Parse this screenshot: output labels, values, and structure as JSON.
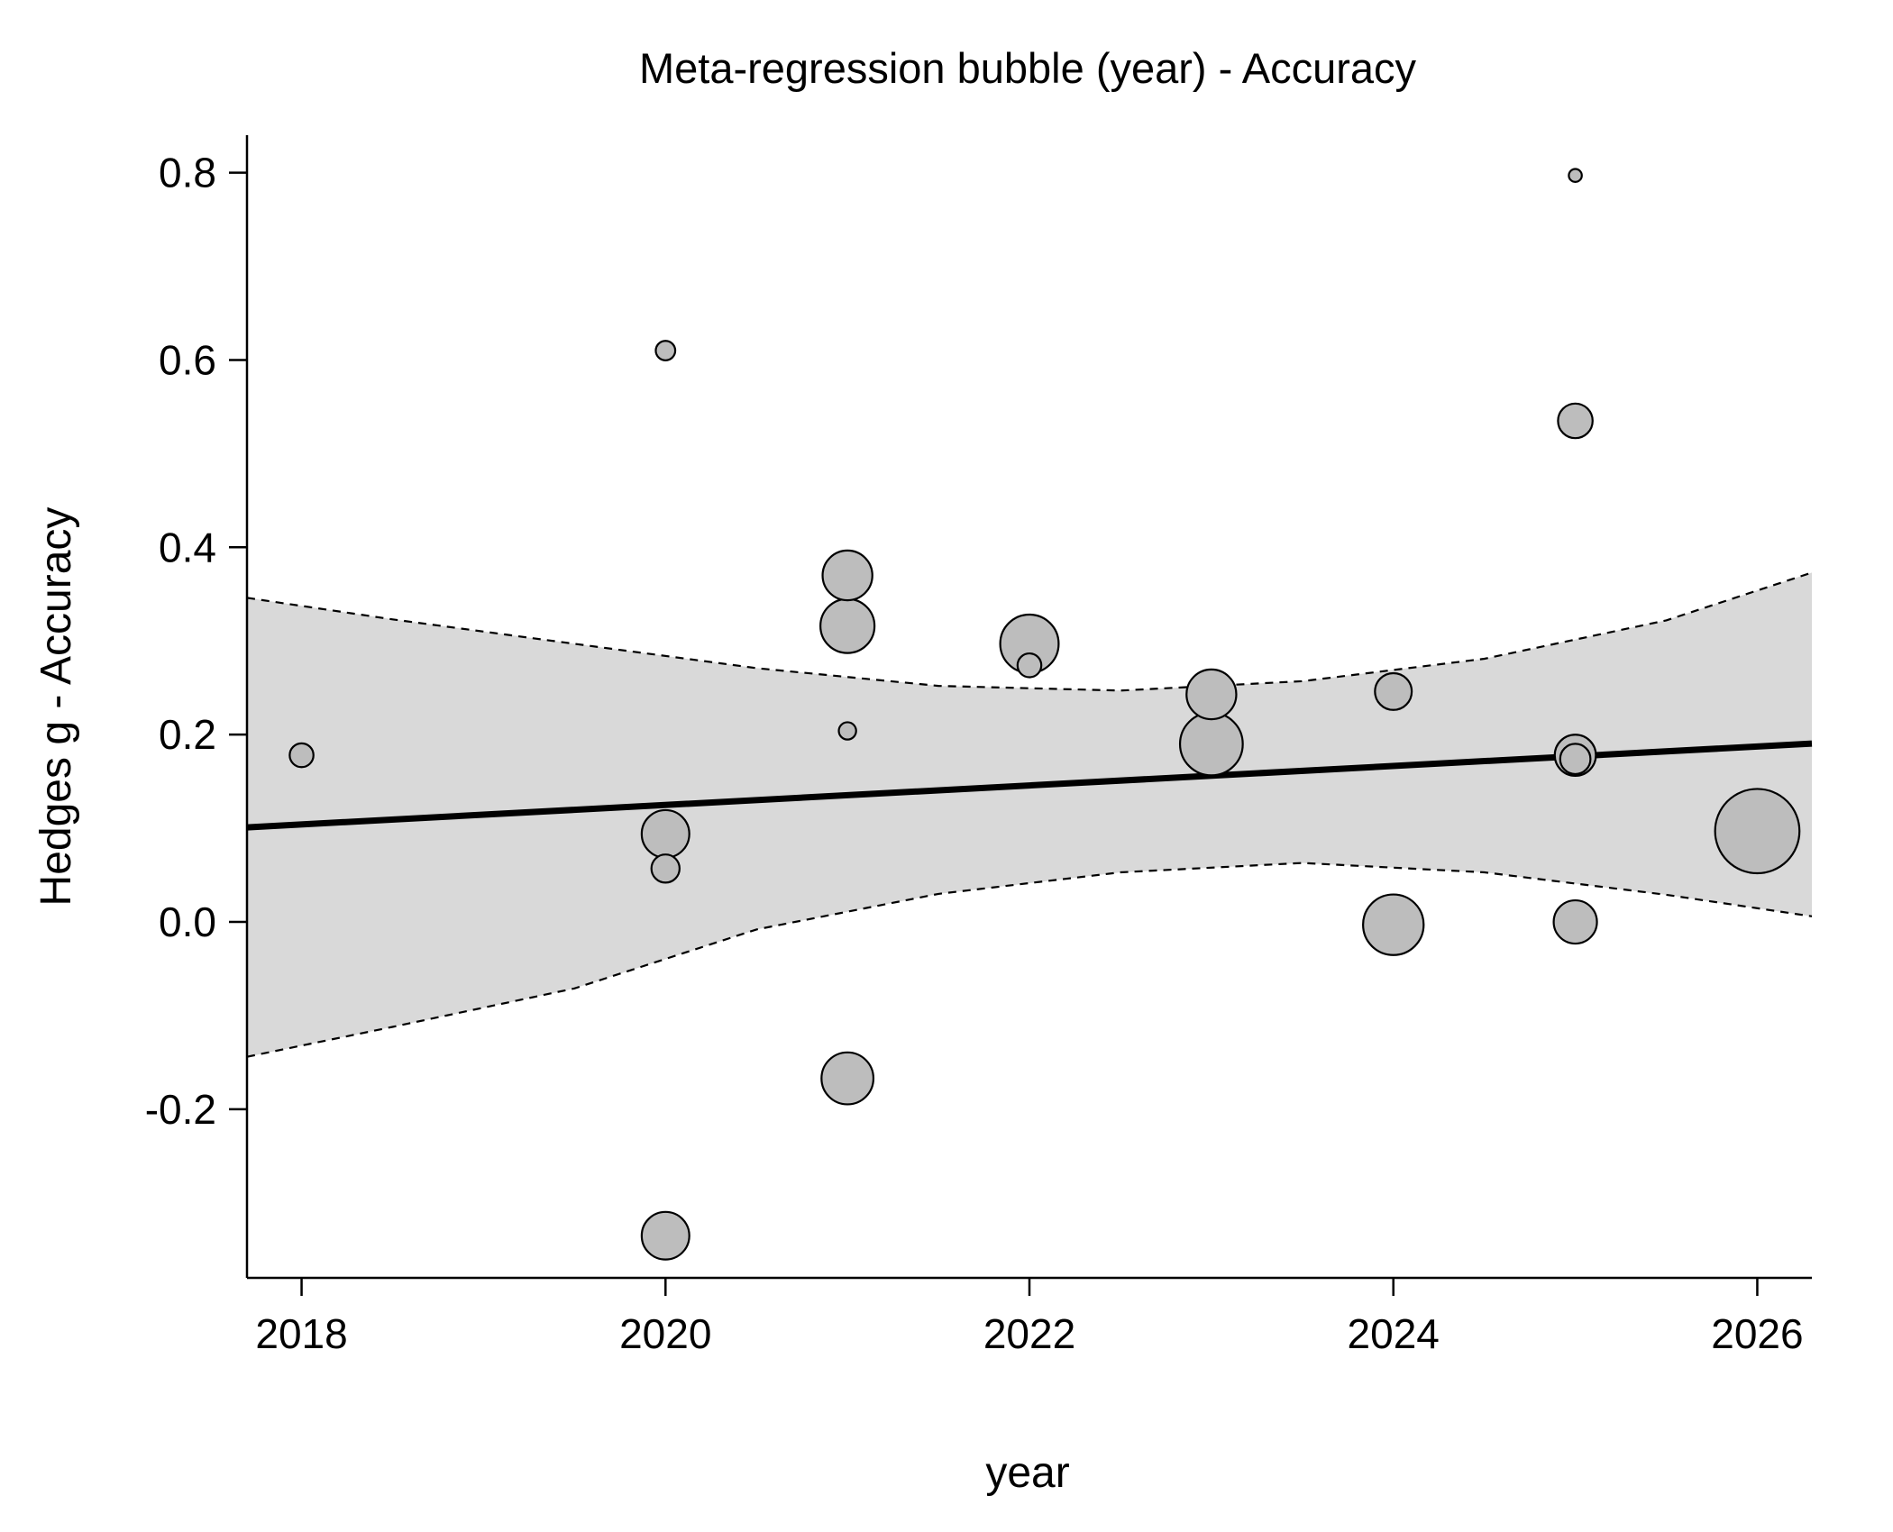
{
  "chart_data": {
    "type": "scatter",
    "title": "Meta-regression bubble (year) - Accuracy",
    "xlabel": "year",
    "ylabel": "Hedges g - Accuracy",
    "xlim": [
      2017.7,
      2026.3
    ],
    "ylim": [
      -0.38,
      0.84
    ],
    "x_ticks": [
      2018,
      2020,
      2022,
      2024,
      2026
    ],
    "y_ticks": [
      -0.2,
      0.0,
      0.2,
      0.4,
      0.6,
      0.8
    ],
    "x_tick_labels": [
      "2018",
      "2020",
      "2022",
      "2024",
      "2026"
    ],
    "y_tick_labels": [
      "-0.2",
      "0.0",
      "0.2",
      "0.4",
      "0.6",
      "0.8"
    ],
    "grid": false,
    "regression": {
      "intercept_at_2017_7": 0.101,
      "slope_per_year": 0.0104
    },
    "ci_band": {
      "x": [
        2017.7,
        2018.5,
        2019.5,
        2020.5,
        2021.5,
        2022.5,
        2023.5,
        2024.5,
        2025.5,
        2026.3
      ],
      "upper": [
        0.346,
        0.323,
        0.297,
        0.271,
        0.252,
        0.247,
        0.257,
        0.281,
        0.322,
        0.373
      ],
      "lower": [
        -0.144,
        -0.112,
        -0.071,
        -0.008,
        0.03,
        0.053,
        0.063,
        0.053,
        0.029,
        0.006
      ]
    },
    "points": [
      {
        "x": 2018,
        "y": 0.178,
        "weight": 1.1
      },
      {
        "x": 2020,
        "y": 0.61,
        "weight": 0.9
      },
      {
        "x": 2020,
        "y": 0.094,
        "weight": 2.2
      },
      {
        "x": 2020,
        "y": 0.057,
        "weight": 1.3
      },
      {
        "x": 2020,
        "y": -0.335,
        "weight": 2.2
      },
      {
        "x": 2021,
        "y": 0.37,
        "weight": 2.3
      },
      {
        "x": 2021,
        "y": 0.316,
        "weight": 2.5
      },
      {
        "x": 2021,
        "y": 0.204,
        "weight": 0.8
      },
      {
        "x": 2021,
        "y": -0.167,
        "weight": 2.4
      },
      {
        "x": 2022,
        "y": 0.297,
        "weight": 2.7
      },
      {
        "x": 2022,
        "y": 0.274,
        "weight": 1.1
      },
      {
        "x": 2023,
        "y": 0.243,
        "weight": 2.3
      },
      {
        "x": 2023,
        "y": 0.19,
        "weight": 2.9
      },
      {
        "x": 2024,
        "y": 0.246,
        "weight": 1.7
      },
      {
        "x": 2024,
        "y": -0.003,
        "weight": 2.8
      },
      {
        "x": 2025,
        "y": 0.797,
        "weight": 0.6
      },
      {
        "x": 2025,
        "y": 0.535,
        "weight": 1.6
      },
      {
        "x": 2025,
        "y": 0.178,
        "weight": 1.9
      },
      {
        "x": 2025,
        "y": 0.174,
        "weight": 1.4
      },
      {
        "x": 2025,
        "y": 0.0,
        "weight": 2.0
      },
      {
        "x": 2026,
        "y": 0.097,
        "weight": 3.9
      }
    ]
  }
}
